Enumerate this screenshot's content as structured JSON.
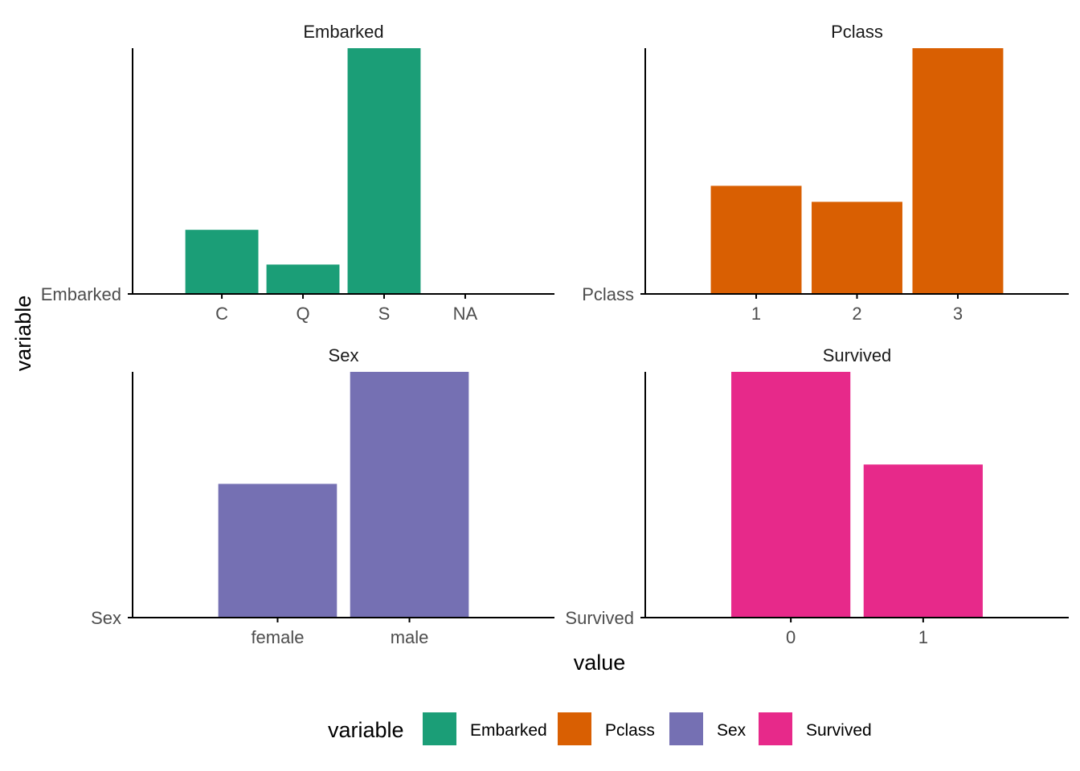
{
  "chart_data": {
    "type": "bar",
    "xlabel": "value",
    "ylabel": "variable",
    "legend": {
      "title": "variable",
      "placement": "bottom",
      "entries": [
        {
          "label": "Embarked",
          "color": "#1b9e77"
        },
        {
          "label": "Pclass",
          "color": "#d95f02"
        },
        {
          "label": "Sex",
          "color": "#7570b3"
        },
        {
          "label": "Survived",
          "color": "#e7298a"
        }
      ]
    },
    "facets": [
      {
        "title": "Embarked",
        "y_tick": "Embarked",
        "color": "#1b9e77",
        "categories": [
          "C",
          "Q",
          "S",
          "NA"
        ],
        "values": [
          168,
          77,
          644,
          2
        ]
      },
      {
        "title": "Pclass",
        "y_tick": "Pclass",
        "color": "#d95f02",
        "categories": [
          "1",
          "2",
          "3"
        ],
        "values": [
          216,
          184,
          491
        ]
      },
      {
        "title": "Sex",
        "y_tick": "Sex",
        "color": "#7570b3",
        "categories": [
          "female",
          "male"
        ],
        "values": [
          314,
          577
        ]
      },
      {
        "title": "Survived",
        "y_tick": "Survived",
        "color": "#e7298a",
        "categories": [
          "0",
          "1"
        ],
        "values": [
          549,
          342
        ]
      }
    ]
  }
}
